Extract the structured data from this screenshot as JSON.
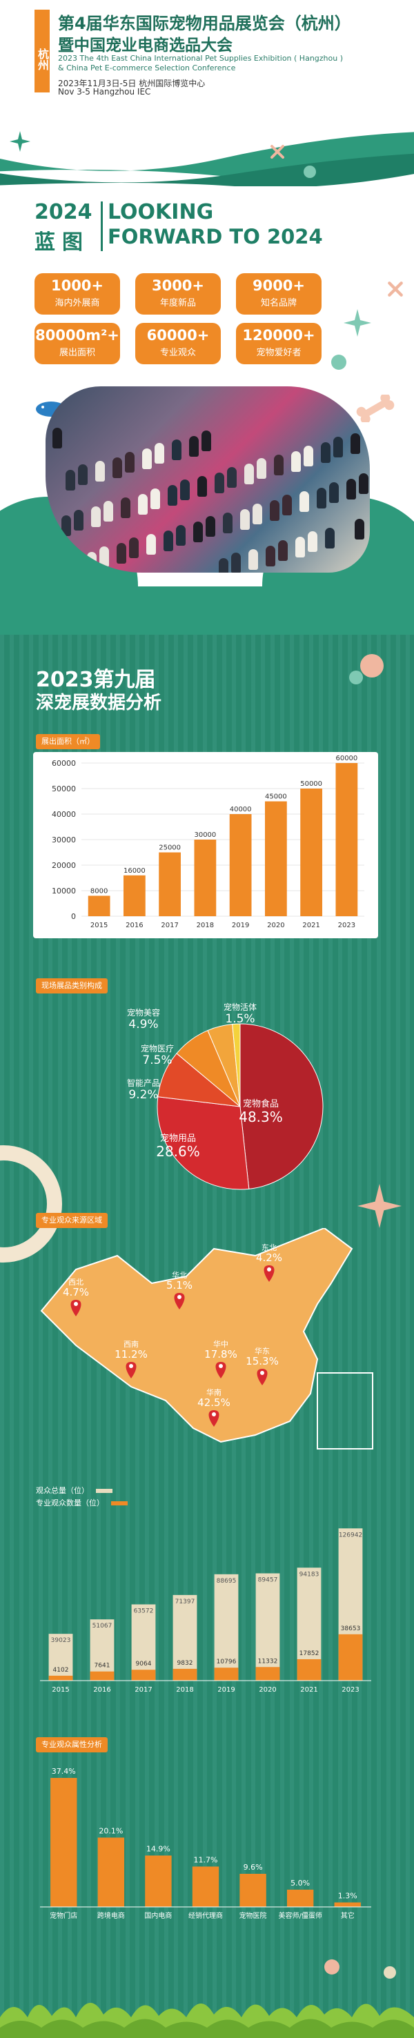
{
  "header": {
    "city_tag": "杭州",
    "title_line1": "第4届华东国际宠物用品展览会（杭州）",
    "title_line2": "暨中国宠业电商选品大会",
    "en_line1": "2023 The 4th East China International Pet Supplies Exhibition ( Hangzhou )",
    "en_line2": "& China Pet E-commerce Selection Conference",
    "date_cn": "2023年11月3日-5日 杭州国际博览中心",
    "date_en": "Nov 3-5 Hangzhou IEC"
  },
  "looking_forward": {
    "year": "2024",
    "blueprint": "蓝图",
    "en_line1": "LOOKING",
    "en_line2": "FORWARD TO 2024",
    "stats": [
      {
        "value": "1000+",
        "label": "海内外展商"
      },
      {
        "value": "3000+",
        "label": "年度新品"
      },
      {
        "value": "9000+",
        "label": "知名品牌"
      },
      {
        "value": "80000m²+",
        "label": "展出面积"
      },
      {
        "value": "60000+",
        "label": "专业观众"
      },
      {
        "value": "120000+",
        "label": "宠物爱好者"
      }
    ]
  },
  "data_section": {
    "title_line1": "2023第九届",
    "title_line2": "深宠展数据分析",
    "area_tag": "展出面积（㎡）",
    "category_tag": "现场展品类别构成",
    "region_tag": "专业观众来源区域",
    "visitors_legend_total": "观众总量（位）",
    "visitors_legend_pro": "专业观众数量（位）",
    "attribute_tag": "专业观众属性分析"
  },
  "colors": {
    "orange": "#ef8a26",
    "green": "#2a8c72",
    "dark_green": "#1f7f66",
    "beige": "#e8dcbf",
    "map": "#f3b05a",
    "pin": "#d8292f"
  },
  "chart_data": [
    {
      "type": "bar",
      "categories": [
        "2015",
        "2016",
        "2017",
        "2018",
        "2019",
        "2020",
        "2021",
        "2023"
      ],
      "values": [
        8000,
        16000,
        25000,
        30000,
        40000,
        45000,
        50000,
        60000
      ],
      "ylim": [
        0,
        60000
      ],
      "yticks": [
        0,
        10000,
        20000,
        30000,
        40000,
        50000,
        60000
      ]
    },
    {
      "type": "pie",
      "labels": [
        "宠物食品",
        "宠物用品",
        "智能产品",
        "宠物医疗",
        "宠物美容",
        "宠物活体"
      ],
      "values": [
        48.3,
        28.6,
        9.2,
        7.5,
        4.9,
        1.5
      ],
      "value_labels": [
        "48.3%",
        "28.6%",
        "9.2%",
        "7.5%",
        "4.9%",
        "1.5%"
      ],
      "colors": [
        "#b3222a",
        "#d42a2f",
        "#e24a28",
        "#ef8a26",
        "#f2a53b",
        "#f4d23c"
      ]
    },
    {
      "type": "map",
      "regions": [
        {
          "name": "东北",
          "value": "4.2%"
        },
        {
          "name": "西北",
          "value": "4.7%"
        },
        {
          "name": "华北",
          "value": "5.1%"
        },
        {
          "name": "西南",
          "value": "11.2%"
        },
        {
          "name": "华中",
          "value": "17.8%"
        },
        {
          "name": "华东",
          "value": "15.3%"
        },
        {
          "name": "华南",
          "value": "42.5%"
        }
      ]
    },
    {
      "type": "bar",
      "categories": [
        "2015",
        "2016",
        "2017",
        "2018",
        "2019",
        "2020",
        "2021",
        "2023"
      ],
      "series": [
        {
          "name": "观众总量（位）",
          "values": [
            39023,
            51067,
            63572,
            71397,
            88695,
            89457,
            94183,
            126942
          ]
        },
        {
          "name": "专业观众数量（位）",
          "values": [
            4102,
            7641,
            9064,
            9832,
            10796,
            11332,
            17852,
            38653
          ]
        }
      ]
    },
    {
      "type": "bar",
      "categories": [
        "宠物门店",
        "跨境电商",
        "国内电商",
        "经销代理商",
        "宠物医院",
        "美容师/僵蛋师",
        "其它"
      ],
      "values": [
        37.4,
        20.1,
        14.9,
        11.7,
        9.6,
        5.0,
        1.3
      ],
      "value_labels": [
        "37.4%",
        "20.1%",
        "14.9%",
        "11.7%",
        "9.6%",
        "5.0%",
        "1.3%"
      ]
    }
  ]
}
